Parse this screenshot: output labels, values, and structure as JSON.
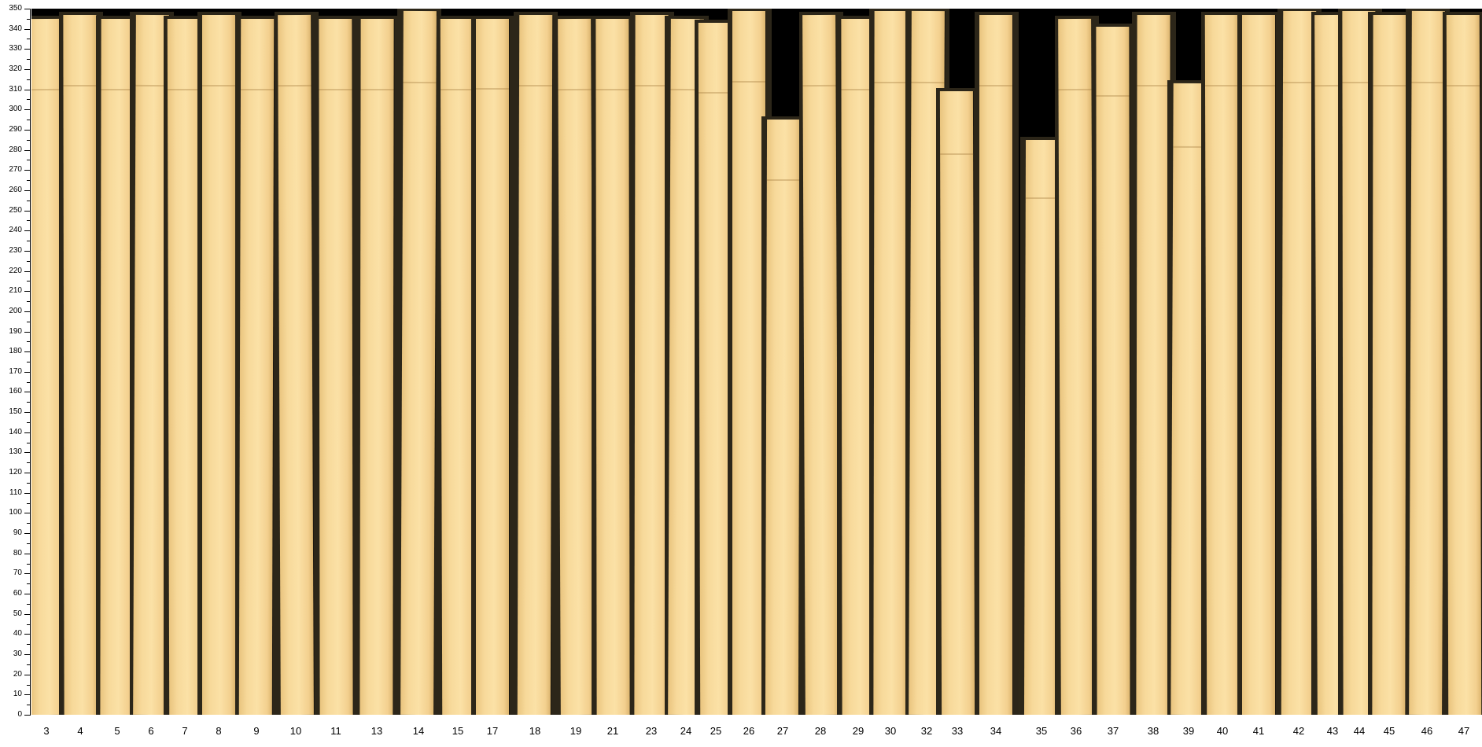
{
  "axis": {
    "min": 0,
    "max": 350,
    "major_step": 10,
    "minor_step": 5
  },
  "slips": [
    {
      "label": "3",
      "length": 345
    },
    {
      "label": "4",
      "length": 347
    },
    {
      "label": "5",
      "length": 345
    },
    {
      "label": "6",
      "length": 347
    },
    {
      "label": "7",
      "length": 345
    },
    {
      "label": "8",
      "length": 347
    },
    {
      "label": "9",
      "length": 345
    },
    {
      "label": "10",
      "length": 347
    },
    {
      "label": "11",
      "length": 345
    },
    {
      "label": "13",
      "length": 345
    },
    {
      "label": "14",
      "length": 349
    },
    {
      "label": "15",
      "length": 345
    },
    {
      "label": "17",
      "length": 345
    },
    {
      "label": "18",
      "length": 347
    },
    {
      "label": "19",
      "length": 345
    },
    {
      "label": "21",
      "length": 345
    },
    {
      "label": "23",
      "length": 347
    },
    {
      "label": "24",
      "length": 345
    },
    {
      "label": "25",
      "length": 343
    },
    {
      "label": "26",
      "length": 349
    },
    {
      "label": "27",
      "length": 295
    },
    {
      "label": "28",
      "length": 347
    },
    {
      "label": "29",
      "length": 345
    },
    {
      "label": "30",
      "length": 349
    },
    {
      "label": "32",
      "length": 349
    },
    {
      "label": "33",
      "length": 309
    },
    {
      "label": "34",
      "length": 347
    },
    {
      "label": "35",
      "length": 285
    },
    {
      "label": "36",
      "length": 345
    },
    {
      "label": "37",
      "length": 341
    },
    {
      "label": "38",
      "length": 347
    },
    {
      "label": "39",
      "length": 313
    },
    {
      "label": "40",
      "length": 347
    },
    {
      "label": "41",
      "length": 347
    },
    {
      "label": "42",
      "length": 349
    },
    {
      "label": "43",
      "length": 347
    },
    {
      "label": "44",
      "length": 349
    },
    {
      "label": "45",
      "length": 347
    },
    {
      "label": "46",
      "length": 349
    },
    {
      "label": "47",
      "length": 347
    }
  ],
  "colors": {
    "slip": "#f7d99a",
    "background_top": "#000000",
    "background_bottom": "#2c2619"
  }
}
